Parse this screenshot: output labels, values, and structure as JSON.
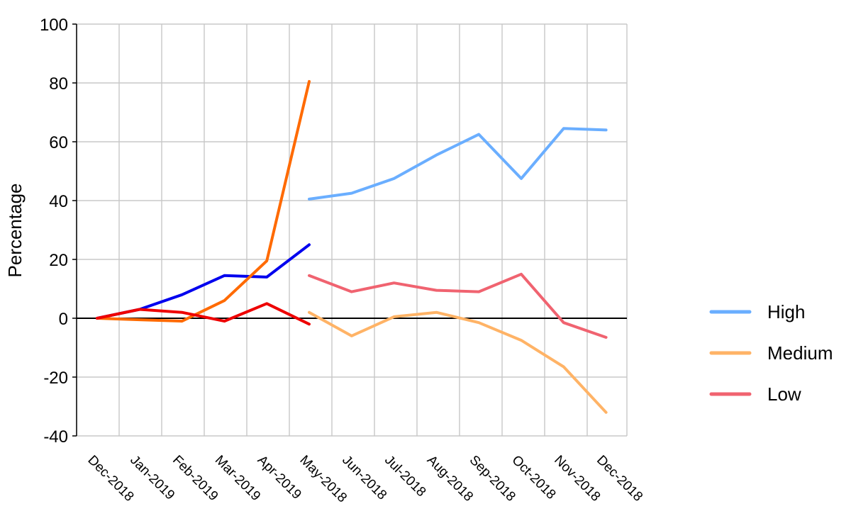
{
  "chart_data": {
    "type": "line",
    "title": "",
    "xlabel": "",
    "ylabel": "Percentage",
    "ylim": [
      -40,
      100
    ],
    "yticks": [
      100,
      80,
      60,
      40,
      20,
      0,
      -20,
      -40
    ],
    "grid": true,
    "legend_position": "right",
    "categories": [
      "Dec-2018",
      "Jan-2019",
      "Feb-2019",
      "Mar-2019",
      "Apr-2019",
      "May-2018",
      "Jun-2018",
      "Jul-2018",
      "Aug-2018",
      "Sep-2018",
      "Oct-2018",
      "Nov-2018",
      "Dec-2018"
    ],
    "series": [
      {
        "name": "High",
        "color": "#6aaeff",
        "values": [
          null,
          null,
          null,
          null,
          null,
          40.5,
          42.5,
          47.5,
          55.5,
          62.5,
          47.5,
          64.5,
          64.0
        ],
        "legend": true
      },
      {
        "name": "Medium",
        "color": "#ffb366",
        "values": [
          null,
          null,
          null,
          null,
          null,
          2.0,
          -6.0,
          0.5,
          2.0,
          -1.5,
          -7.5,
          -16.5,
          -32.0
        ],
        "legend": true
      },
      {
        "name": "Low",
        "color": "#f06370",
        "values": [
          null,
          null,
          null,
          null,
          null,
          14.5,
          9.0,
          12.0,
          9.5,
          9.0,
          15.0,
          -1.5,
          -6.5
        ],
        "legend": true
      },
      {
        "name": "",
        "color": "#0000ee",
        "values": [
          0.0,
          3.0,
          8.0,
          14.5,
          14.0,
          25.0,
          null,
          null,
          null,
          null,
          null,
          null,
          null
        ],
        "legend": false
      },
      {
        "name": "",
        "color": "#ff6a00",
        "values": [
          0.0,
          -0.5,
          -1.0,
          6.0,
          19.5,
          80.5,
          null,
          null,
          null,
          null,
          null,
          null,
          null
        ],
        "legend": false
      },
      {
        "name": "",
        "color": "#ee0000",
        "values": [
          0.0,
          3.0,
          2.0,
          -1.0,
          5.0,
          -2.0,
          null,
          null,
          null,
          null,
          null,
          null,
          null
        ],
        "legend": false
      }
    ]
  }
}
